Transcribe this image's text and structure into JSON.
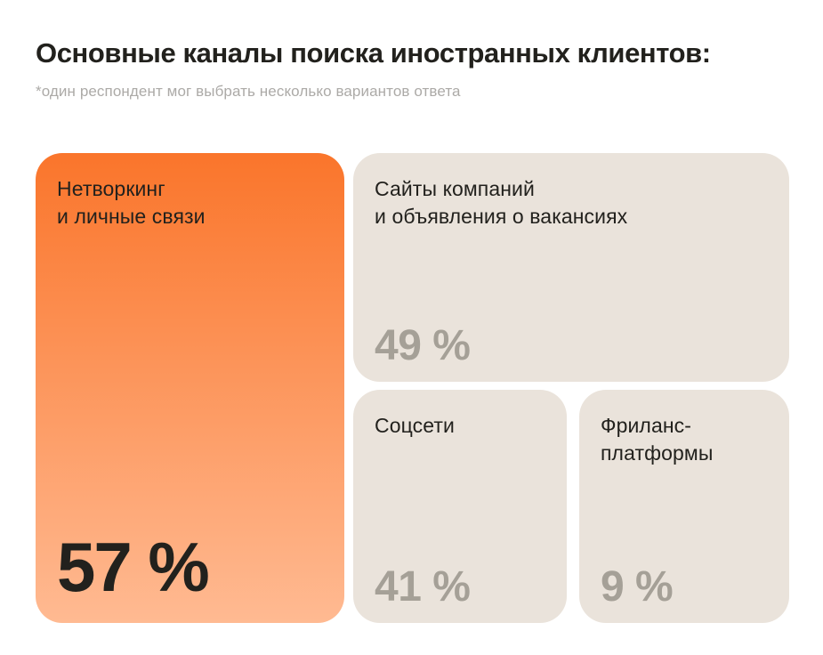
{
  "header": {
    "title": "Основные каналы поиска иностранных клиентов:",
    "subtitle": "*один респондент мог выбрать несколько вариантов ответа"
  },
  "cards": [
    {
      "label": "Нетворкинг\nи личные связи",
      "value": "57 %",
      "highlight": true
    },
    {
      "label": "Сайты компаний\nи объявления о вакансиях",
      "value": "49 %",
      "highlight": false
    },
    {
      "label": "Соцсети",
      "value": "41 %",
      "highlight": false
    },
    {
      "label": "Фриланс-\nплатформы",
      "value": "9 %",
      "highlight": false
    }
  ],
  "colors": {
    "accent_top": "#fa752b",
    "accent_bottom": "#ffba92",
    "card_bg": "#eae3db",
    "text_dark": "#22211d",
    "muted_value": "#a5a097",
    "subtitle_gray": "#acaaa7",
    "page_bg": "#ffffff"
  },
  "chart_data": {
    "type": "bar",
    "title": "Основные каналы поиска иностранных клиентов:",
    "subtitle": "*один респондент мог выбрать несколько вариантов ответа",
    "categories": [
      "Нетворкинг и личные связи",
      "Сайты компаний и объявления о вакансиях",
      "Соцсети",
      "Фриланс-платформы"
    ],
    "values": [
      57,
      49,
      41,
      9
    ],
    "unit": "%",
    "xlabel": "",
    "ylabel": "",
    "legend": false,
    "layout_hint": "proportional card grid (treemap-style infographic), highlighted top category in orange gradient, others beige"
  }
}
